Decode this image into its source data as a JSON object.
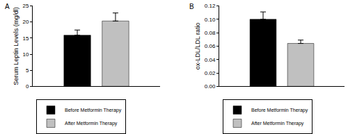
{
  "chart_data": [
    {
      "type": "bar",
      "title": "A",
      "y_label": "Serum Leptin Levels (mg/dl)",
      "categories": [
        null
      ],
      "series": [
        {
          "name": "Before Metformin Therapy",
          "color": "#000000",
          "values": [
            15.9
          ],
          "error": [
            1.6
          ]
        },
        {
          "name": "After Metformin Therapy",
          "color": "#c0c0c0",
          "values": [
            20.3
          ],
          "error": [
            2.5
          ]
        }
      ],
      "ylim": [
        0,
        25
      ],
      "yticks": [
        0,
        5,
        10,
        15,
        20,
        25
      ],
      "grid": false,
      "legend": "bottom left",
      "tick_labels": "y"
    },
    {
      "type": "bar",
      "title": "B",
      "y_label": "ox-LDL/LDL ratio",
      "categories": [
        null
      ],
      "series": [
        {
          "name": "Before Metformin Therapy",
          "color": "#000000",
          "values": [
            0.1
          ],
          "error": [
            0.011
          ]
        },
        {
          "name": "After Metformin Therapy",
          "color": "#c0c0c0",
          "values": [
            0.064
          ],
          "error": [
            0.005
          ]
        }
      ],
      "ylim": [
        0,
        0.12
      ],
      "yticks": [
        {
          "value": 0,
          "label": "0.00"
        },
        0.02,
        0.04,
        0.06,
        0.08,
        {
          "value": 0.1,
          "label": "0.10"
        },
        0.12
      ],
      "grid": false,
      "legend": "bottom left",
      "tick_labels": "y"
    }
  ]
}
